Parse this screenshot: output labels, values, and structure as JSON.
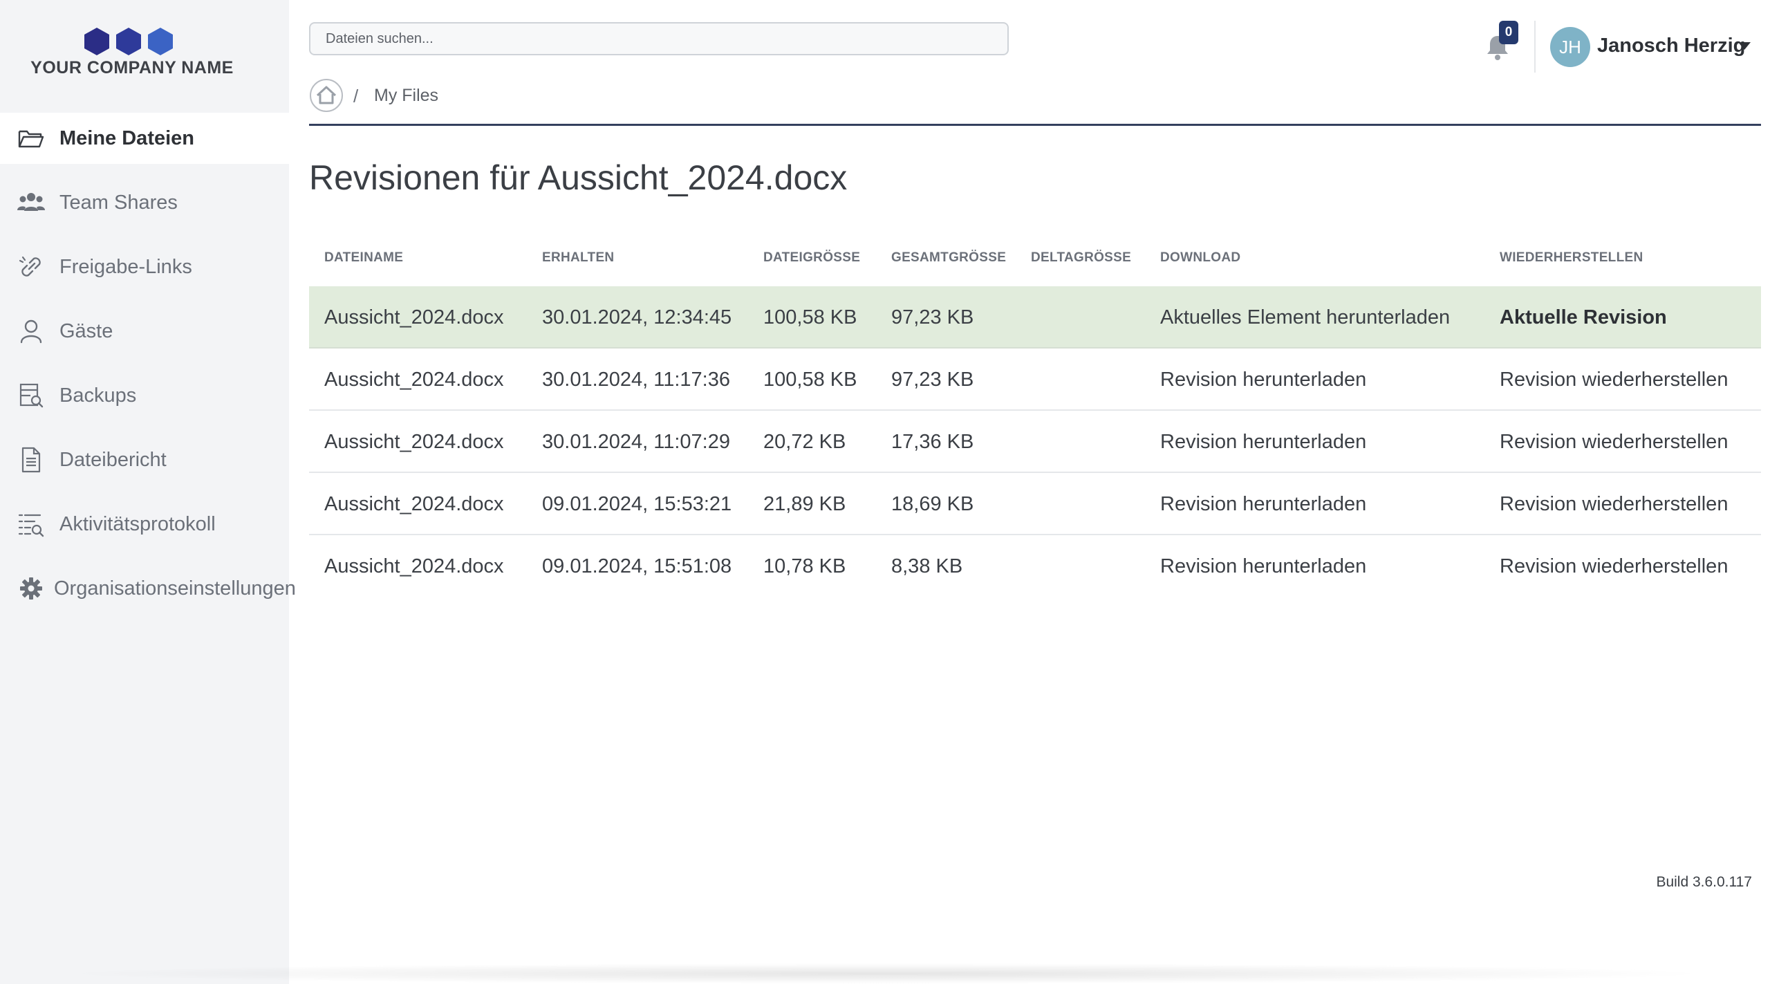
{
  "brand": {
    "name": "YOUR COMPANY NAME",
    "hex_color": "#2b2d86",
    "hex_color_light": "#3b63c4"
  },
  "sidebar": {
    "items": [
      {
        "label": "Meine Dateien",
        "icon": "folder-open-icon",
        "active": true
      },
      {
        "label": "Team Shares",
        "icon": "users-icon"
      },
      {
        "label": "Freigabe-Links",
        "icon": "link-icon"
      },
      {
        "label": "Gäste",
        "icon": "user-icon"
      },
      {
        "label": "Backups",
        "icon": "backup-search-icon"
      },
      {
        "label": "Dateibericht",
        "icon": "file-report-icon"
      },
      {
        "label": "Aktivitätsprotokoll",
        "icon": "activity-list-icon"
      },
      {
        "label": "Organisationseinstellungen",
        "icon": "gear-icon"
      }
    ]
  },
  "header": {
    "search_placeholder": "Dateien suchen...",
    "notifications_count": "0",
    "user": {
      "initials": "JH",
      "name": "Janosch Herzig"
    }
  },
  "breadcrumb": {
    "separator": "/",
    "current": "My Files"
  },
  "page": {
    "title": "Revisionen für Aussicht_2024.docx"
  },
  "table": {
    "columns": [
      "DATEINAME",
      "ERHALTEN",
      "DATEIGRÖSSE",
      "GESAMTGRÖSSE",
      "DELTAGRÖSSE",
      "DOWNLOAD",
      "WIEDERHERSTELLEN"
    ],
    "rows": [
      {
        "filename": "Aussicht_2024.docx",
        "received": "30.01.2024, 12:34:45",
        "size": "100,58 KB",
        "total": "97,23 KB",
        "delta": "",
        "download": "Aktuelles Element herunterladen",
        "restore": "Aktuelle Revision",
        "current": true
      },
      {
        "filename": "Aussicht_2024.docx",
        "received": "30.01.2024, 11:17:36",
        "size": "100,58 KB",
        "total": "97,23 KB",
        "delta": "",
        "download": "Revision herunterladen",
        "restore": "Revision wiederherstellen"
      },
      {
        "filename": "Aussicht_2024.docx",
        "received": "30.01.2024, 11:07:29",
        "size": "20,72 KB",
        "total": "17,36 KB",
        "delta": "",
        "download": "Revision herunterladen",
        "restore": "Revision wiederherstellen"
      },
      {
        "filename": "Aussicht_2024.docx",
        "received": "09.01.2024, 15:53:21",
        "size": "21,89 KB",
        "total": "18,69 KB",
        "delta": "",
        "download": "Revision herunterladen",
        "restore": "Revision wiederherstellen"
      },
      {
        "filename": "Aussicht_2024.docx",
        "received": "09.01.2024, 15:51:08",
        "size": "10,78 KB",
        "total": "8,38 KB",
        "delta": "",
        "download": "Revision herunterladen",
        "restore": "Revision wiederherstellen"
      }
    ]
  },
  "footer": {
    "build": "Build 3.6.0.117"
  },
  "colors": {
    "current_row": "#e1ecdc",
    "badge": "#253a6e",
    "avatar": "#7fb3c7",
    "divider": "#34405e"
  }
}
